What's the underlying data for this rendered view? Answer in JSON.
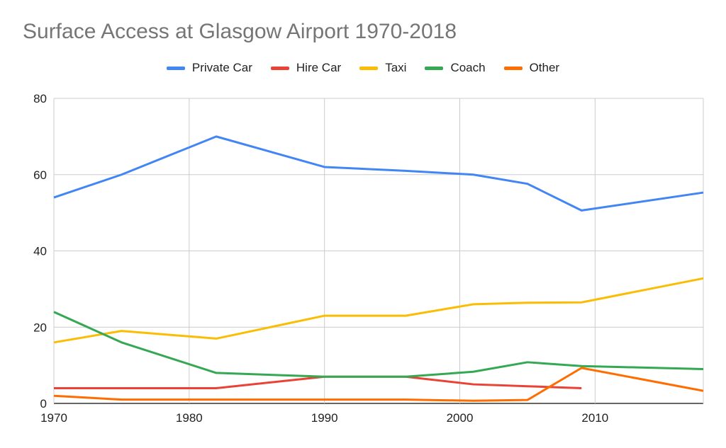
{
  "chart_data": {
    "type": "line",
    "title": "Surface Access at Glasgow Airport 1970-2018",
    "xlabel": "",
    "ylabel": "",
    "xlim": [
      1970,
      2018
    ],
    "ylim": [
      0,
      80
    ],
    "xticks": [
      1970,
      1980,
      1990,
      2000,
      2010
    ],
    "yticks": [
      0,
      20,
      40,
      60,
      80
    ],
    "grid": true,
    "legend_position": "top",
    "x": [
      1970,
      1975,
      1982,
      1990,
      1996,
      2001,
      2005,
      2009,
      2018
    ],
    "series": [
      {
        "name": "Private Car",
        "color": "#4285f4",
        "values": [
          54,
          60,
          70,
          62,
          61,
          60,
          57.6,
          50.6,
          55.3
        ]
      },
      {
        "name": "Hire Car",
        "color": "#ea4335",
        "values": [
          4,
          4,
          4,
          7,
          7,
          5,
          4.5,
          4,
          null
        ]
      },
      {
        "name": "Taxi",
        "color": "#fbbc04",
        "values": [
          16,
          19,
          17,
          23,
          23,
          26,
          26.4,
          26.5,
          32.8
        ]
      },
      {
        "name": "Coach",
        "color": "#34a853",
        "values": [
          24,
          16,
          8,
          7,
          7,
          8.3,
          10.8,
          9.8,
          9
        ]
      },
      {
        "name": "Other",
        "color": "#ff6d01",
        "values": [
          2,
          1,
          1,
          1,
          1,
          0.7,
          0.9,
          9.3,
          3.3
        ]
      }
    ]
  }
}
